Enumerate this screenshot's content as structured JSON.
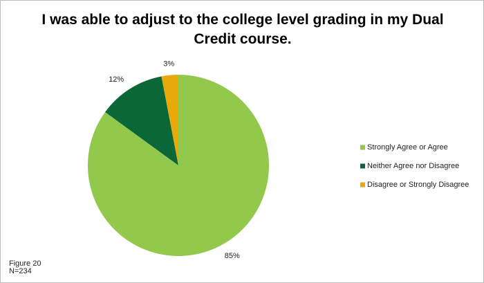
{
  "chart_data": {
    "type": "pie",
    "title": "I was able to adjust to the college level grading in my Dual Credit course.",
    "categories": [
      "Strongly Agree or Agree",
      "Neither Agree nor Disagree",
      "Disagree or Strongly Disagree"
    ],
    "values": [
      85,
      12,
      3
    ],
    "value_labels": [
      "85%",
      "12%",
      "3%"
    ],
    "colors": [
      "#92c84c",
      "#0b6638",
      "#e8a90a"
    ],
    "legend": "right",
    "notes": [
      "Figure 20",
      "N=234"
    ]
  }
}
